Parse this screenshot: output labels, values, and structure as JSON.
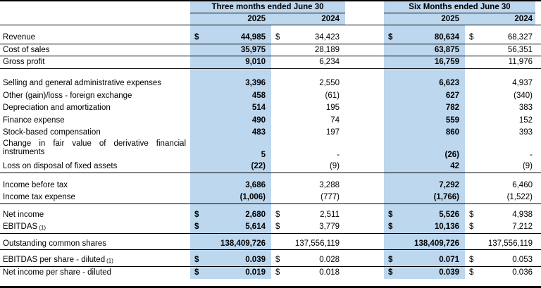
{
  "table": {
    "highlight_color": "#bdd7ee",
    "group_headers": [
      {
        "label": "Three months ended June 30"
      },
      {
        "label": "Six Months ended June 30"
      }
    ],
    "year_headers": [
      "2025",
      "2024",
      "2025",
      "2024"
    ],
    "rows": [
      {
        "label": "Revenue",
        "dollar": true,
        "values": [
          "44,985",
          "34,423",
          "80,634",
          "68,327"
        ],
        "line": true,
        "space_before": 9
      },
      {
        "label": "Cost of sales",
        "dollar": false,
        "values": [
          "35,975",
          "28,189",
          "63,875",
          "56,351"
        ],
        "line": true
      },
      {
        "label": "Gross profit",
        "dollar": false,
        "values": [
          "9,010",
          "6,234",
          "16,759",
          "11,976"
        ],
        "line": true
      },
      {
        "label": "Selling and general administrative expenses",
        "dollar": false,
        "values": [
          "3,396",
          "2,550",
          "6,623",
          "4,937"
        ],
        "space_before": 12
      },
      {
        "label": "Other (gain)/loss - foreign exchange",
        "dollar": false,
        "values": [
          "458",
          "(61)",
          "627",
          "(340)"
        ]
      },
      {
        "label": "Depreciation and amortization",
        "dollar": false,
        "values": [
          "514",
          "195",
          "782",
          "383"
        ]
      },
      {
        "label": "Finance expense",
        "dollar": false,
        "values": [
          "490",
          "74",
          "559",
          "152"
        ]
      },
      {
        "label": "Stock-based compensation",
        "dollar": false,
        "values": [
          "483",
          "197",
          "860",
          "393"
        ]
      },
      {
        "label": "Change in fair value of derivative financial instruments",
        "dollar": false,
        "values": [
          "5",
          "-",
          "(26)",
          "-"
        ],
        "tall": true
      },
      {
        "label": "Loss on disposal of fixed assets",
        "dollar": false,
        "values": [
          "(22)",
          "(9)",
          "42",
          "(9)"
        ],
        "line": true
      },
      {
        "label": "Income before tax",
        "dollar": false,
        "values": [
          "3,686",
          "3,288",
          "7,292",
          "6,460"
        ],
        "space_before": 9
      },
      {
        "label": "Income tax expense",
        "dollar": false,
        "values": [
          "(1,006)",
          "(777)",
          "(1,766)",
          "(1,522)"
        ],
        "line": true
      },
      {
        "label": "Net income",
        "dollar": true,
        "values": [
          "2,680",
          "2,511",
          "5,526",
          "4,938"
        ],
        "space_before": 7
      },
      {
        "label": "EBITDAS",
        "sup": "(1)",
        "dollar": true,
        "values": [
          "5,614",
          "3,779",
          "10,136",
          "7,212"
        ],
        "line": true
      },
      {
        "label": "Outstanding common shares",
        "dollar": false,
        "values": [
          "138,409,726",
          "137,556,119",
          "138,409,726",
          "137,556,119"
        ],
        "line": true,
        "space_before": 6
      },
      {
        "label": "EBITDAS per share - diluted",
        "sup": "(1)",
        "dollar": true,
        "values": [
          "0.039",
          "0.028",
          "0.071",
          "0.053"
        ],
        "line": true,
        "space_before": 6
      },
      {
        "label": "Net income per share - diluted",
        "dollar": true,
        "values": [
          "0.019",
          "0.018",
          "0.039",
          "0.036"
        ]
      }
    ]
  }
}
